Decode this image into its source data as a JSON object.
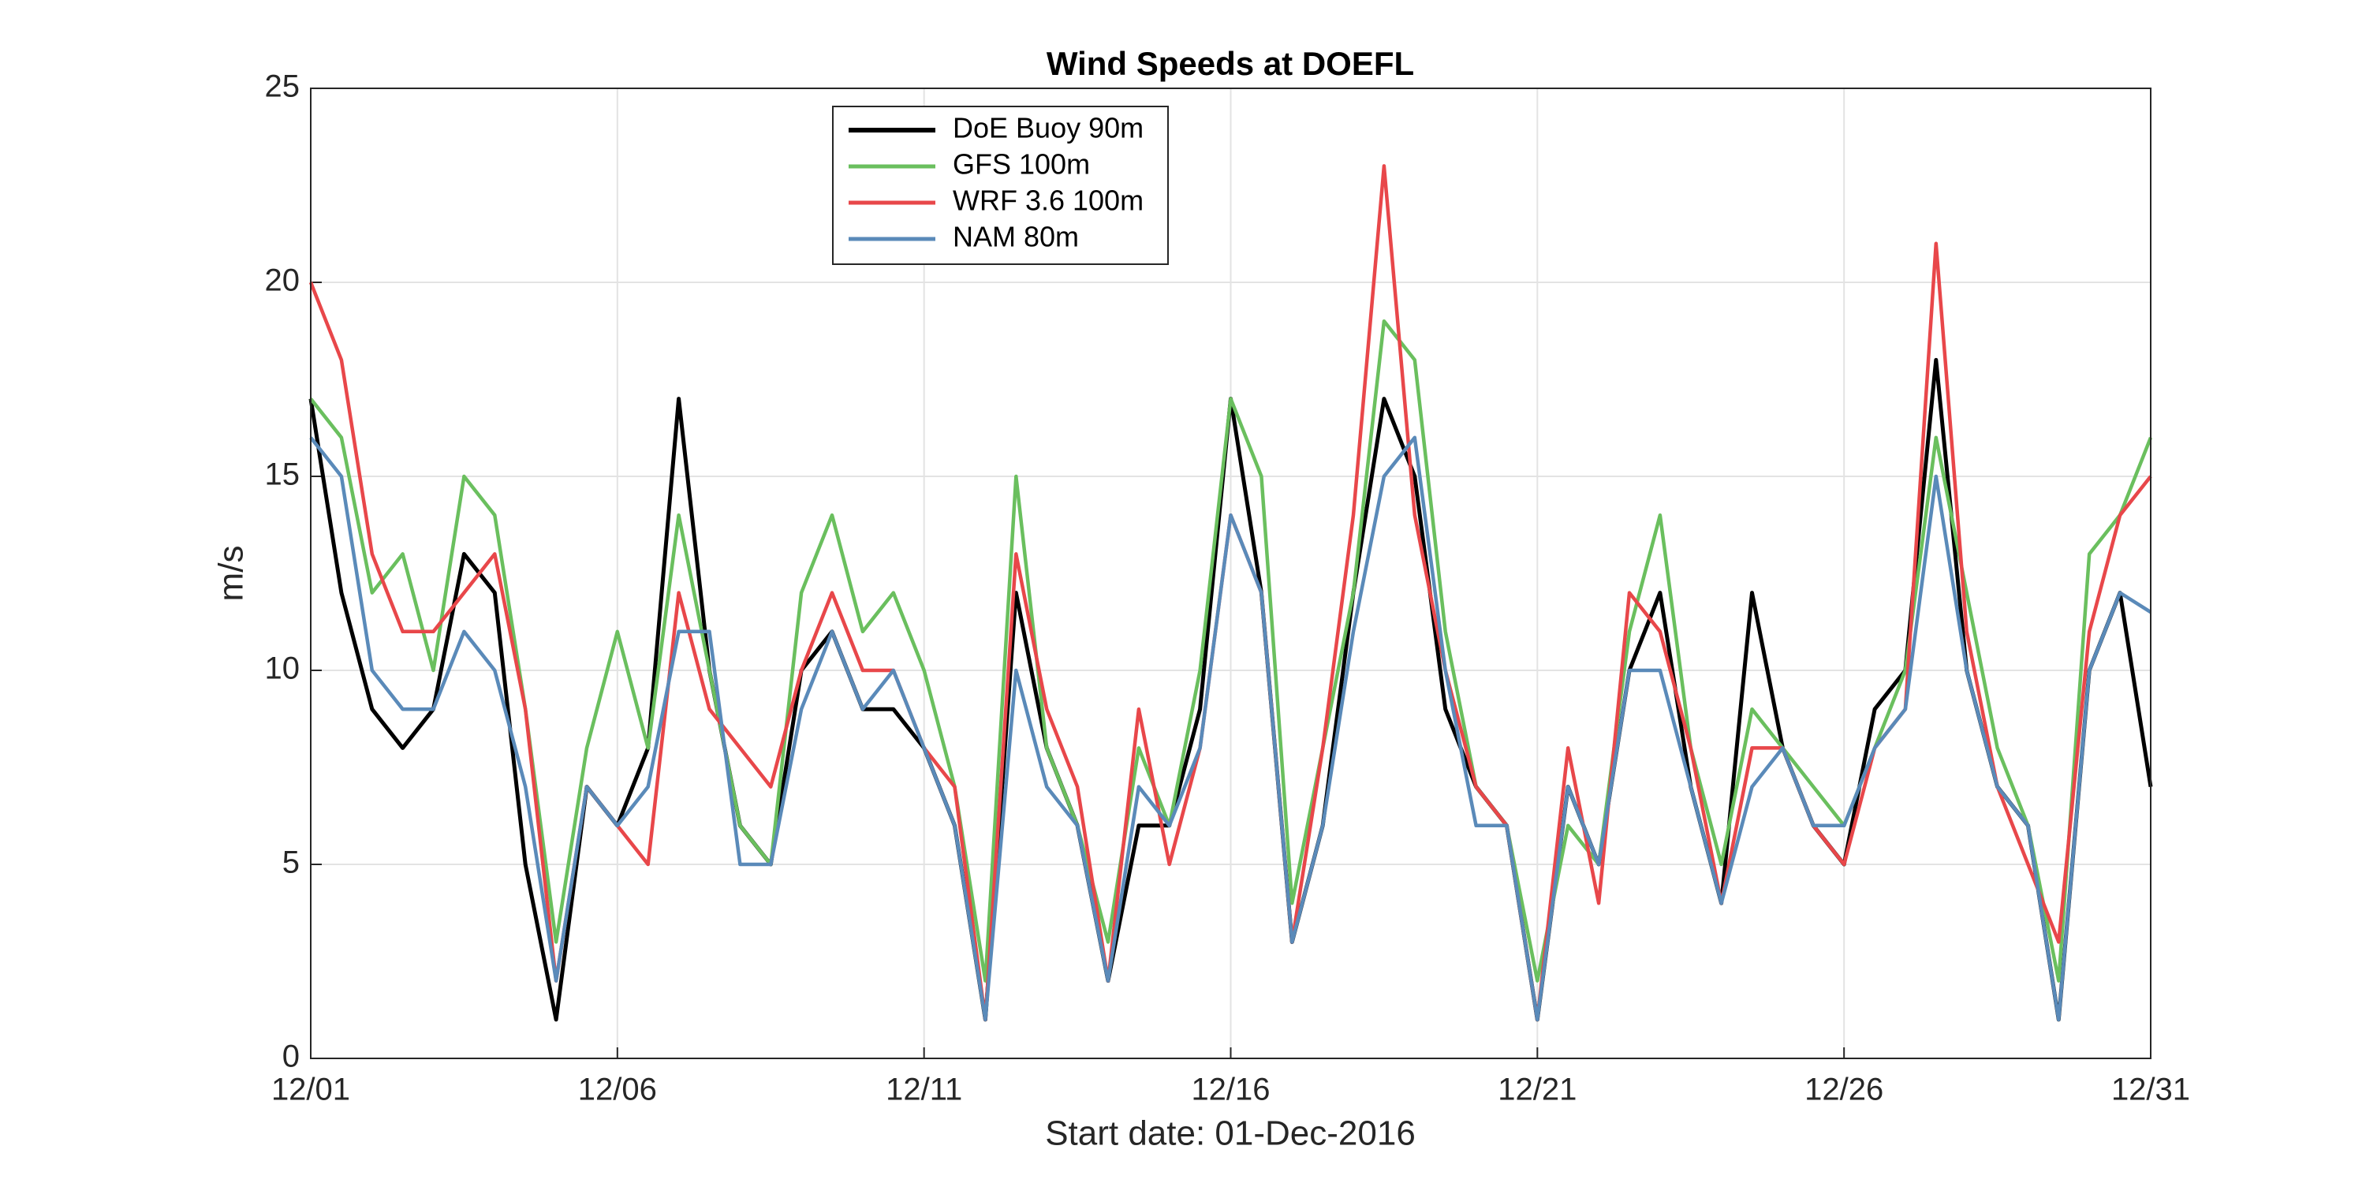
{
  "chart_data": {
    "type": "line",
    "title": "Wind Speeds at DOEFL",
    "xlabel": "Start date: 01-Dec-2016",
    "ylabel": "m/s",
    "x": [
      0,
      0.5,
      1,
      1.5,
      2,
      2.5,
      3,
      3.5,
      4,
      4.5,
      5,
      5.5,
      6,
      6.5,
      7,
      7.5,
      8,
      8.5,
      9,
      9.5,
      10,
      10.5,
      11,
      11.5,
      12,
      12.5,
      13,
      13.5,
      14,
      14.5,
      15,
      15.5,
      16,
      16.5,
      17,
      17.5,
      18,
      18.5,
      19,
      19.5,
      20,
      20.5,
      21,
      21.5,
      22,
      22.5,
      23,
      23.5,
      24,
      24.5,
      25,
      25.5,
      26,
      26.5,
      27,
      27.5,
      28,
      28.5,
      29,
      29.5,
      30
    ],
    "series": [
      {
        "name": "DoE Buoy 90m",
        "color": "#000000",
        "values": [
          17,
          12,
          9,
          8,
          9,
          13,
          12,
          5,
          1,
          7,
          6,
          8,
          17,
          10,
          6,
          5,
          10,
          11,
          9,
          9,
          8,
          6,
          1,
          12,
          8,
          6,
          2,
          6,
          6,
          9,
          17,
          12,
          3,
          6,
          12,
          17,
          15,
          9,
          7,
          6,
          1,
          7,
          5,
          10,
          12,
          7,
          4,
          12,
          8,
          6,
          5,
          9,
          10,
          18,
          10,
          7,
          6,
          1,
          10,
          12,
          7
        ]
      },
      {
        "name": "GFS 100m",
        "color": "#6abf5e",
        "values": [
          17,
          16,
          12,
          13,
          10,
          15,
          14,
          9,
          3,
          8,
          11,
          8,
          14,
          10,
          6,
          5,
          12,
          14,
          11,
          12,
          10,
          7,
          2,
          15,
          8,
          6,
          3,
          8,
          6,
          10,
          17,
          15,
          4,
          8,
          12,
          19,
          18,
          11,
          7,
          6,
          2,
          6,
          5,
          11,
          14,
          8,
          5,
          9,
          8,
          7,
          6,
          8,
          10,
          16,
          12,
          8,
          6,
          2,
          13,
          14,
          16
        ]
      },
      {
        "name": "WRF 3.6 100m",
        "color": "#e8474a",
        "values": [
          20,
          18,
          13,
          11,
          11,
          12,
          13,
          9,
          2,
          7,
          6,
          5,
          12,
          9,
          8,
          7,
          10,
          12,
          10,
          10,
          8,
          7,
          1,
          13,
          9,
          7,
          2,
          9,
          5,
          8,
          14,
          12,
          3,
          8,
          14,
          23,
          14,
          10,
          7,
          6,
          1,
          8,
          4,
          12,
          11,
          8,
          4,
          8,
          8,
          6,
          5,
          8,
          9,
          21,
          11,
          7,
          5,
          3,
          11,
          14,
          15
        ]
      },
      {
        "name": "NAM 80m",
        "color": "#5a8ab9",
        "values": [
          16,
          15,
          10,
          9,
          9,
          11,
          10,
          7,
          2,
          7,
          6,
          7,
          11,
          11,
          5,
          5,
          9,
          11,
          9,
          10,
          8,
          6,
          1,
          10,
          7,
          6,
          2,
          7,
          6,
          8,
          14,
          12,
          3,
          6,
          11,
          15,
          16,
          10,
          6,
          6,
          1,
          7,
          5,
          10,
          10,
          7,
          4,
          7,
          8,
          6,
          6,
          8,
          9,
          15,
          10,
          7,
          6,
          1,
          10,
          12,
          11.5
        ]
      }
    ],
    "xlim": [
      0,
      30
    ],
    "xticks": [
      {
        "value": 0,
        "label": "12/01"
      },
      {
        "value": 5,
        "label": "12/06"
      },
      {
        "value": 10,
        "label": "12/11"
      },
      {
        "value": 15,
        "label": "12/16"
      },
      {
        "value": 20,
        "label": "12/21"
      },
      {
        "value": 25,
        "label": "12/26"
      },
      {
        "value": 30,
        "label": "12/31"
      }
    ],
    "ylim": [
      0,
      25
    ],
    "yticks": [
      0,
      5,
      10,
      15,
      20,
      25
    ],
    "grid": true
  }
}
